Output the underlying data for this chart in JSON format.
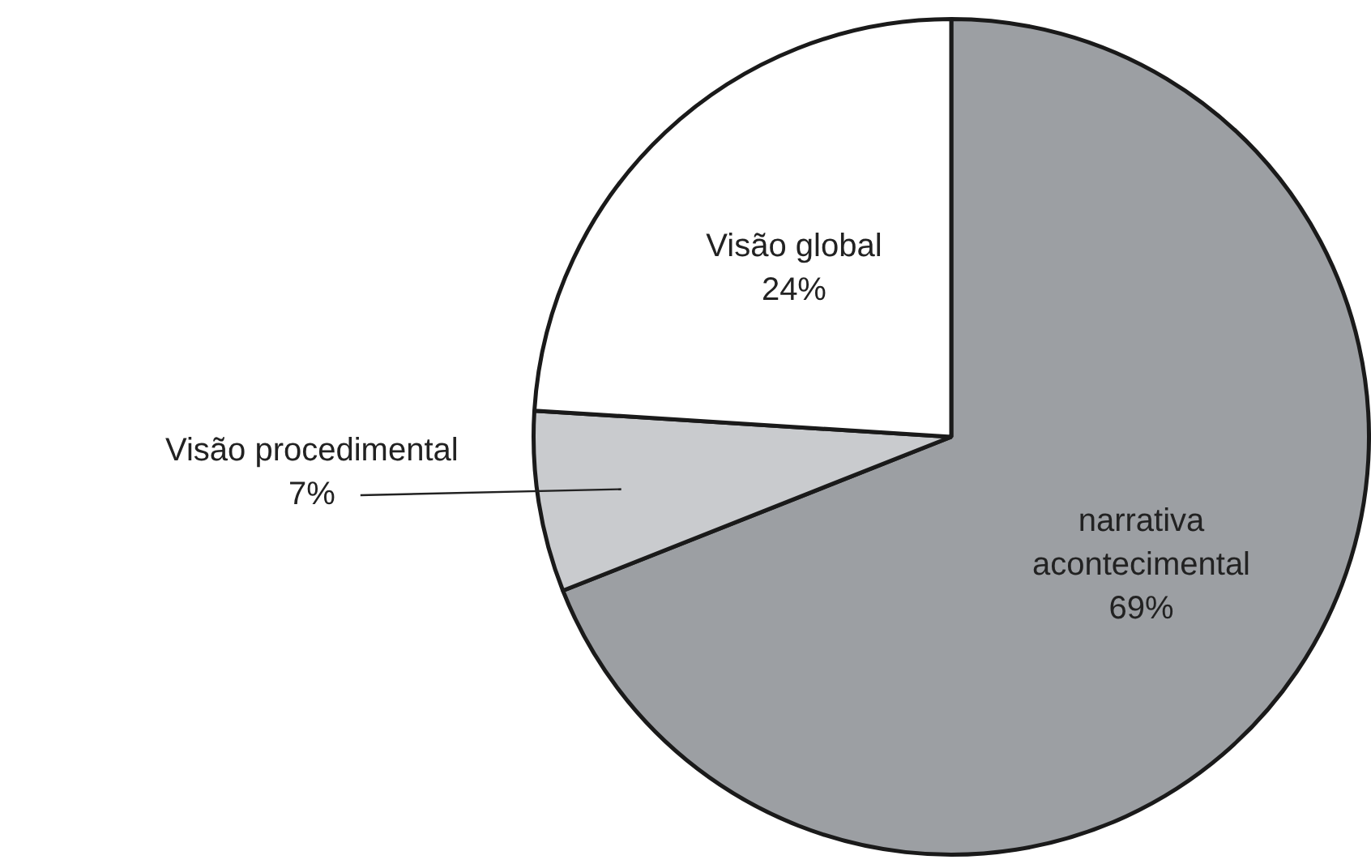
{
  "chart_data": {
    "type": "pie",
    "categories": [
      "narrativa acontecimental",
      "Visão procedimental",
      "Visão global"
    ],
    "values": [
      69,
      7,
      24
    ],
    "value_labels": [
      "69%",
      "7%",
      "24%"
    ],
    "colors": [
      "#9c9fa3",
      "#c9cbce",
      "#ffffff"
    ],
    "legend": false
  }
}
